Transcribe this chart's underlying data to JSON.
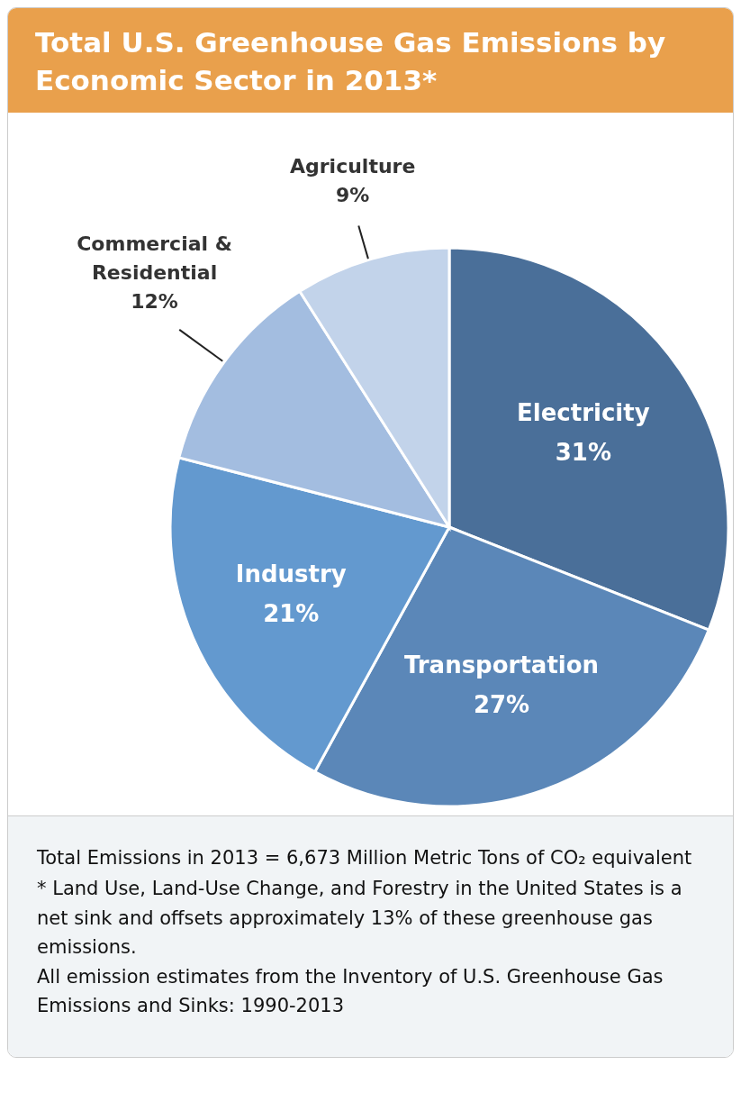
{
  "chart_data": {
    "type": "pie",
    "title": "Total U.S. Greenhouse Gas Emissions by Economic Sector in 2013*",
    "categories": [
      "Electricity",
      "Transportation",
      "Industry",
      "Commercial & Residential",
      "Agriculture"
    ],
    "values": [
      31,
      27,
      21,
      12,
      9
    ],
    "colors": [
      "#4a6f99",
      "#5b87b8",
      "#6399cf",
      "#a3bde0",
      "#c2d3ea"
    ],
    "value_labels": [
      "31%",
      "27%",
      "21%",
      "12%",
      "9%"
    ],
    "annotations": [
      "Total Emissions in 2013 = 6,673 Million Metric Tons of CO₂ equivalent",
      "* Land Use, Land-Use Change, and Forestry in the United States is a net sink and offsets approximately 13% of these greenhouse gas emissions.",
      "All emission estimates from the Inventory of U.S. Greenhouse Gas Emissions and Sinks: 1990-2013"
    ]
  }
}
